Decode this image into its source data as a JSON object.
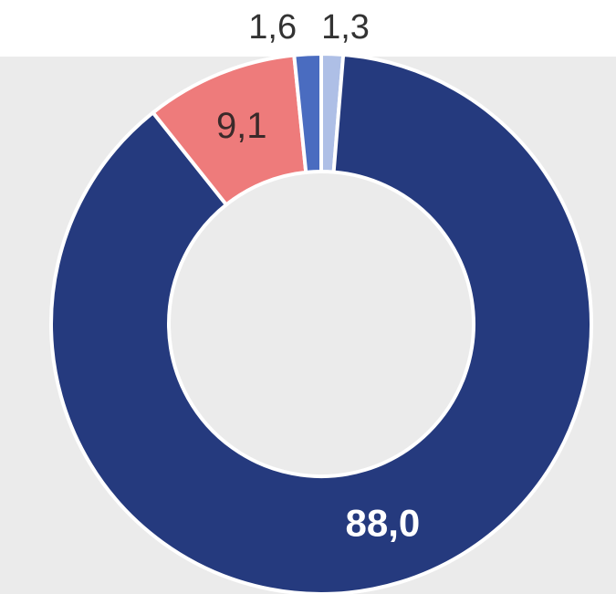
{
  "chart_data": {
    "type": "donut",
    "values": [
      1.3,
      88.0,
      9.1,
      1.6
    ],
    "value_labels": [
      "1,3",
      "88,0",
      "9,1",
      "1,6"
    ],
    "colors": [
      "#aebfe6",
      "#253a7e",
      "#ee7b7b",
      "#4a6cc0"
    ]
  }
}
